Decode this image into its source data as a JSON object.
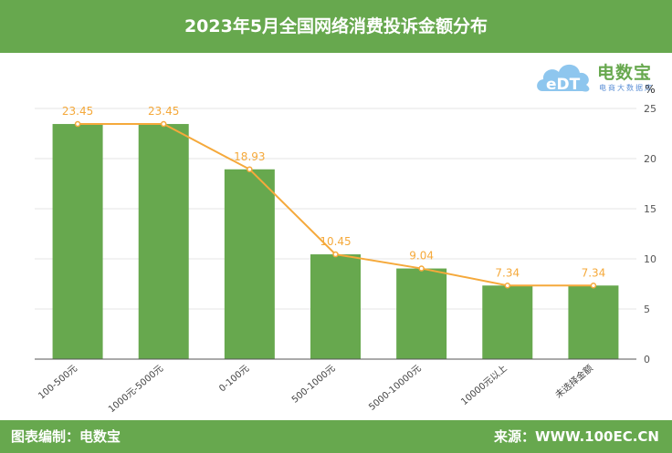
{
  "header": {
    "title": "2023年5月全国网络消费投诉金额分布"
  },
  "footer": {
    "left": "图表编制：电数宝",
    "right": "来源：WWW.100EC.CN"
  },
  "logo": {
    "mark": "eDT",
    "name": "电数宝",
    "subtitle": "电商大数据库"
  },
  "colors": {
    "bar": "#67a84e",
    "line": "#f5a93b",
    "header": "#67a84e"
  },
  "chart_data": {
    "type": "bar",
    "unit": "%",
    "categories": [
      "100-500元",
      "1000元-5000元",
      "0-100元",
      "500-1000元",
      "5000-10000元",
      "10000元以上",
      "未选择金额"
    ],
    "series": [
      {
        "type": "bar",
        "values": [
          23.45,
          23.45,
          18.93,
          10.45,
          9.04,
          7.34,
          7.34
        ]
      },
      {
        "type": "line",
        "values": [
          23.45,
          23.45,
          18.93,
          10.45,
          9.04,
          7.34,
          7.34
        ],
        "labels": [
          "23.45",
          "23.45",
          "18.93",
          "10.45",
          "9.04",
          "7.34",
          "7.34"
        ]
      }
    ],
    "ylim": [
      0,
      25
    ],
    "yticks": [
      0,
      5,
      10,
      15,
      20,
      25
    ],
    "yaxis_position": "right",
    "grid": true
  }
}
